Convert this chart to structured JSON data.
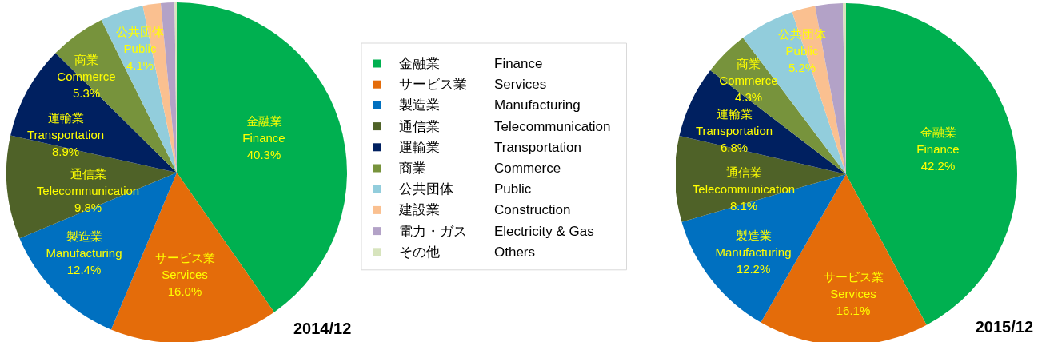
{
  "chart_data": [
    {
      "type": "pie",
      "title": "2014/12",
      "categories": [
        "金融業\nFinance",
        "サービス業\nServices",
        "製造業\nManufacturing",
        "通信業\nTelecommunication",
        "運輸業\nTransportation",
        "商業\nCommerce",
        "公共団体\nPublic",
        "建設業\nConstruction",
        "電力・ガス\nElectricity & Gas",
        "その他\nOthers"
      ],
      "values": [
        40.3,
        16.0,
        12.4,
        9.8,
        8.9,
        5.3,
        4.1,
        1.7,
        1.3,
        0.2
      ],
      "value_labels": [
        "40.3%",
        "16.0%",
        "12.4%",
        "9.8%",
        "8.9%",
        "5.3%",
        "4.1%",
        null,
        null,
        null
      ],
      "colors": [
        "#00b050",
        "#e46c0a",
        "#0070c0",
        "#4f6228",
        "#002060",
        "#77933c",
        "#92cddc",
        "#fac090",
        "#b3a2c7",
        "#d7e4bd"
      ],
      "legend": "right"
    },
    {
      "type": "pie",
      "title": "2015/12",
      "values": [
        42.2,
        16.1,
        12.2,
        8.1,
        6.8,
        4.3,
        5.2,
        2.2,
        2.6,
        0.3
      ],
      "categories": [
        "金融業\nFinance",
        "サービス業\nServices",
        "製造業\nManufacturing",
        "通信業\nTelecommunication",
        "運輸業\nTransportation",
        "商業\nCommerce",
        "公共団体\nPublic",
        null,
        null,
        null
      ],
      "value_labels": [
        "42.2%",
        "16.1%",
        "12.2%",
        "8.1%",
        "6.8%",
        "4.3%",
        "5.2%",
        null,
        null,
        null
      ],
      "colors": [
        "#00b050",
        "#e46c0a",
        "#0070c0",
        "#4f6228",
        "#002060",
        "#77933c",
        "#92cddc",
        "#fac090",
        "#b3a2c7",
        "#d7e4bd"
      ],
      "legend": false
    }
  ]
}
